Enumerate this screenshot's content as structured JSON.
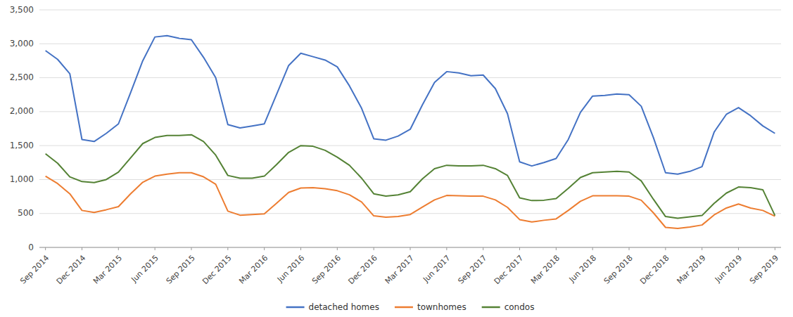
{
  "chart_data": {
    "type": "line",
    "categories": [
      "Sep 2014",
      null,
      null,
      "Dec 2014",
      null,
      null,
      "Mar 2015",
      null,
      null,
      "Jun 2015",
      null,
      null,
      "Sep 2015",
      null,
      null,
      "Dec 2015",
      null,
      null,
      "Mar 2016",
      null,
      null,
      "Jun 2016",
      null,
      null,
      "Sep 2016",
      null,
      null,
      "Dec 2016",
      null,
      null,
      "Mar 2017",
      null,
      null,
      "Jun 2017",
      null,
      null,
      "Sep 2017",
      null,
      null,
      "Dec 2017",
      null,
      null,
      "Mar 2018",
      null,
      null,
      "Jun 2018",
      null,
      null,
      "Sep 2018",
      null,
      null,
      "Dec 2018",
      null,
      null,
      "Mar 2019",
      null,
      null,
      "Jun 2019",
      null,
      null,
      "Sep 2019"
    ],
    "series": [
      {
        "name": "detached homes",
        "color": "#4472C4",
        "values": [
          2900,
          2770,
          2560,
          1590,
          1560,
          1680,
          1820,
          2280,
          2750,
          3100,
          3120,
          3080,
          3060,
          2800,
          2500,
          1810,
          1760,
          1790,
          1820,
          2250,
          2680,
          2860,
          2810,
          2760,
          2660,
          2380,
          2050,
          1600,
          1580,
          1640,
          1740,
          2100,
          2430,
          2590,
          2570,
          2530,
          2540,
          2340,
          1970,
          1260,
          1200,
          1250,
          1310,
          1590,
          1990,
          2230,
          2240,
          2260,
          2250,
          2080,
          1620,
          1100,
          1080,
          1120,
          1190,
          1700,
          1960,
          2060,
          1940,
          1790,
          1680
        ]
      },
      {
        "name": "townhomes",
        "color": "#ED7D31",
        "values": [
          1050,
          940,
          790,
          545,
          515,
          555,
          600,
          790,
          960,
          1050,
          1080,
          1100,
          1100,
          1040,
          930,
          535,
          475,
          485,
          495,
          650,
          810,
          875,
          880,
          865,
          835,
          775,
          670,
          465,
          445,
          455,
          485,
          595,
          700,
          765,
          760,
          755,
          755,
          700,
          590,
          410,
          375,
          400,
          420,
          545,
          680,
          760,
          760,
          760,
          755,
          695,
          510,
          295,
          280,
          300,
          330,
          480,
          580,
          640,
          580,
          545,
          460
        ]
      },
      {
        "name": "condos",
        "color": "#548235",
        "values": [
          1380,
          1240,
          1040,
          970,
          955,
          1000,
          1110,
          1320,
          1530,
          1620,
          1650,
          1650,
          1660,
          1560,
          1360,
          1060,
          1020,
          1020,
          1050,
          1220,
          1400,
          1500,
          1490,
          1430,
          1330,
          1210,
          1020,
          790,
          755,
          775,
          820,
          1010,
          1160,
          1210,
          1200,
          1200,
          1210,
          1160,
          1060,
          730,
          690,
          695,
          720,
          870,
          1030,
          1100,
          1110,
          1120,
          1110,
          980,
          710,
          455,
          430,
          450,
          470,
          650,
          800,
          890,
          880,
          850,
          470
        ]
      }
    ],
    "ylim": [
      0,
      3500
    ],
    "yticks": [
      0,
      500,
      {
        "value": 1000,
        "label": "1,000"
      },
      {
        "value": 1500,
        "label": "1,500"
      },
      {
        "value": 2000,
        "label": "2,000"
      },
      {
        "value": 2500,
        "label": "2,500"
      },
      {
        "value": 3000,
        "label": "3,000"
      },
      {
        "value": 3500,
        "label": "3,500"
      }
    ],
    "grid": true,
    "legend": "bottom"
  }
}
